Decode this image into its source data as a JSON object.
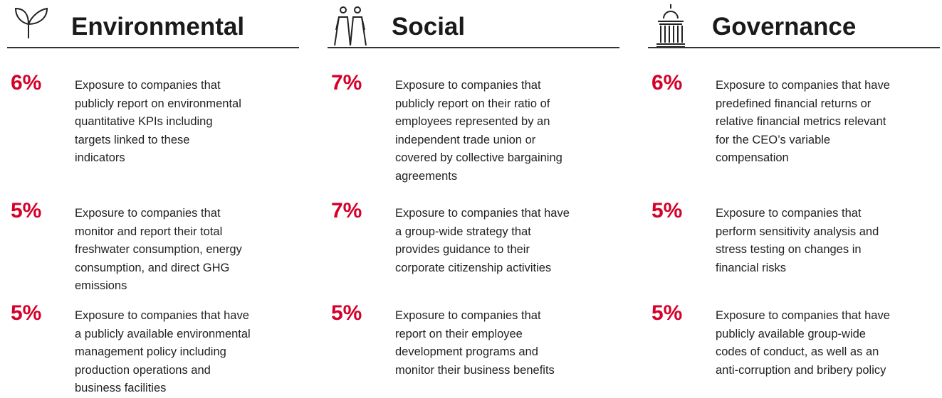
{
  "columns": [
    {
      "title": "Environmental",
      "items": [
        {
          "percent": "6%",
          "lines": [
            "Exposure to companies that",
            "publicly report on environmental",
            "quantitative KPIs including",
            "targets linked to these",
            "indicators"
          ]
        },
        {
          "percent": "5%",
          "lines": [
            "Exposure to companies that",
            "monitor and report their total",
            "freshwater consumption, energy",
            "consumption, and direct GHG",
            "emissions"
          ]
        },
        {
          "percent": "5%",
          "lines": [
            "Exposure to companies that have",
            "a publicly available  environmental",
            "management  policy including",
            "production operations and",
            "business facilities"
          ]
        }
      ]
    },
    {
      "title": "Social",
      "items": [
        {
          "percent": "7%",
          "lines": [
            "Exposure to companies that",
            "publicly report on their ratio of",
            "employees  represented by an",
            "independent trade union or",
            "covered by collective bargaining",
            "agreements"
          ]
        },
        {
          "percent": "7%",
          "lines": [
            "Exposure to companies that have",
            "a group-wide strategy that",
            "provides guidance to their",
            "corporate citizenship activities"
          ]
        },
        {
          "percent": "5%",
          "lines": [
            "Exposure to companies that",
            "report on their employee",
            "development  programs and",
            "monitor their business benefits"
          ]
        }
      ]
    },
    {
      "title": "Governance",
      "items": [
        {
          "percent": "6%",
          "lines": [
            "Exposure to companies that have",
            "predefined financial returns or",
            "relative  financial metrics relevant",
            "for the CEO’s variable",
            "compensation"
          ]
        },
        {
          "percent": "5%",
          "lines": [
            "Exposure to companies that",
            "perform sensitivity analysis and",
            "stress testing on changes in",
            "financial risks"
          ]
        },
        {
          "percent": "5%",
          "lines": [
            "Exposure to companies that have",
            "publicly available  group-wide",
            "codes of conduct, as well as an",
            "anti-corruption and bribery policy"
          ]
        }
      ]
    }
  ]
}
